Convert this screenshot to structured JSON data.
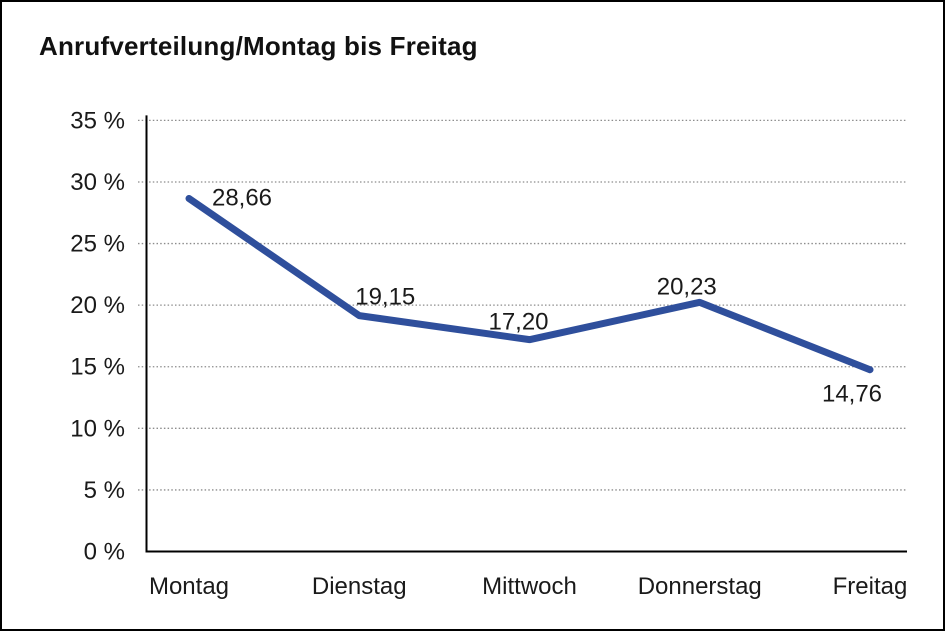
{
  "frame": {
    "background": "#ffffff",
    "border_color": "#000000"
  },
  "chart_data": {
    "type": "line",
    "title": "Anrufverteilung/Montag bis Freitag",
    "categories": [
      "Montag",
      "Dienstag",
      "Mittwoch",
      "Donnerstag",
      "Freitag"
    ],
    "values": [
      28.66,
      19.15,
      17.2,
      20.23,
      14.76
    ],
    "point_labels": [
      "28,66",
      "19,15",
      "17,20",
      "20,23",
      "14,76"
    ],
    "xlabel": "",
    "ylabel": "",
    "y_axis": {
      "min": 0,
      "max": 35,
      "step": 5,
      "unit": "%",
      "tick_labels": [
        "0 %",
        "5 %",
        "10 %",
        "15 %",
        "20 %",
        "25 %",
        "30 %",
        "35 %"
      ]
    },
    "grid": "dotted-horizontal",
    "legend": "none",
    "colors": {
      "line": "#2f4f9c",
      "grid": "#8c8c8c",
      "axis": "#000000",
      "text": "#1a1a1a"
    }
  }
}
